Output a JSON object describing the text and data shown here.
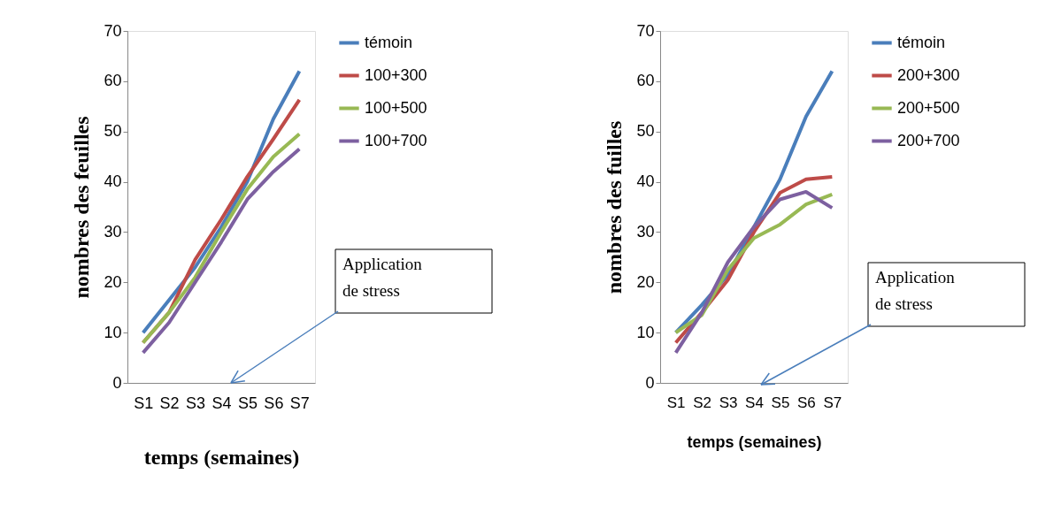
{
  "chart_data": [
    {
      "type": "line",
      "categories": [
        "S1",
        "S2",
        "S3",
        "S4",
        "S5",
        "S6",
        "S7"
      ],
      "xlabel": "temps (semaines)",
      "ylabel": "nombres des feuilles",
      "ylim": [
        0,
        70
      ],
      "yticks": [
        0,
        10,
        20,
        30,
        40,
        50,
        60,
        70
      ],
      "grid": false,
      "legend": "right",
      "marker": "none",
      "line_style": "solid",
      "annotations": [
        "Application de stress"
      ],
      "series": [
        {
          "name": "témoin",
          "color": "#4a7ebb",
          "values": [
            10,
            16.5,
            23,
            31,
            40,
            52.5,
            62
          ]
        },
        {
          "name": "100+300",
          "color": "#be4b48",
          "values": [
            8,
            14,
            24.5,
            32.5,
            41,
            48.5,
            56.3
          ]
        },
        {
          "name": "100+500",
          "color": "#98b954",
          "values": [
            8,
            14,
            21,
            30,
            38.5,
            45,
            49.5
          ]
        },
        {
          "name": "100+700",
          "color": "#7d60a0",
          "values": [
            6,
            12,
            20,
            28,
            36.5,
            42,
            46.5
          ]
        }
      ]
    },
    {
      "type": "line",
      "categories": [
        "S1",
        "S2",
        "S3",
        "S4",
        "S5",
        "S6",
        "S7"
      ],
      "xlabel": "temps (semaines)",
      "ylabel": "nombres des fuilles",
      "ylim": [
        0,
        70
      ],
      "yticks": [
        0,
        10,
        20,
        30,
        40,
        50,
        60,
        70
      ],
      "grid": false,
      "legend": "right",
      "marker": "none",
      "line_style": "solid",
      "annotations": [
        "Application de stress"
      ],
      "series": [
        {
          "name": "témoin",
          "color": "#4a7ebb",
          "values": [
            10,
            15.5,
            21.5,
            31,
            40.5,
            53,
            62
          ]
        },
        {
          "name": "200+300",
          "color": "#be4b48",
          "values": [
            8,
            14,
            20.5,
            30,
            37.8,
            40.5,
            41
          ]
        },
        {
          "name": "200+500",
          "color": "#98b954",
          "values": [
            10,
            13.5,
            22.5,
            28.8,
            31.5,
            35.5,
            37.5
          ]
        },
        {
          "name": "200+700",
          "color": "#7d60a0",
          "values": [
            6,
            14,
            24,
            31,
            36.5,
            38,
            34.8
          ]
        }
      ]
    }
  ]
}
